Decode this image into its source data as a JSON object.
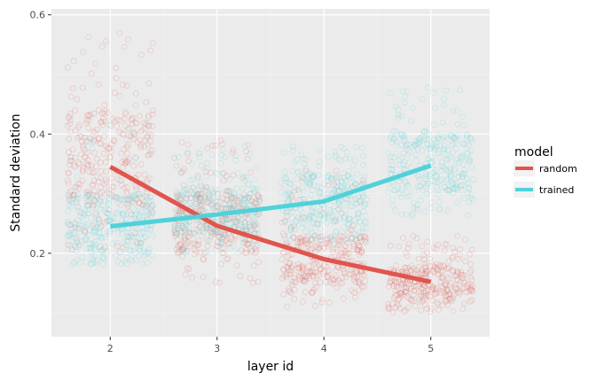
{
  "chart_data": {
    "type": "scatter",
    "title": "",
    "xlabel": "layer id",
    "ylabel": "Standard deviation",
    "x_ticks": [
      "2",
      "3",
      "4",
      "5"
    ],
    "y_ticks": [
      "0.2",
      "0.4",
      "0.6"
    ],
    "xlim": [
      1.45,
      5.55
    ],
    "ylim": [
      0.06,
      0.61
    ],
    "grid": true,
    "legend": {
      "title": "model",
      "position": "right",
      "entries": [
        "random",
        "trained"
      ]
    },
    "colors": {
      "random": "#E0554E",
      "trained": "#4FD2D8"
    },
    "series": [
      {
        "name": "random",
        "color": "#E0554E",
        "line_x": [
          2,
          3,
          4,
          5
        ],
        "line_y": [
          0.345,
          0.246,
          0.19,
          0.152
        ],
        "points": [
          {
            "x": 2,
            "low": 0.2,
            "q1": 0.28,
            "q3": 0.44,
            "high": 0.58
          },
          {
            "x": 3,
            "low": 0.15,
            "q1": 0.2,
            "q3": 0.3,
            "high": 0.39
          },
          {
            "x": 4,
            "low": 0.11,
            "q1": 0.15,
            "q3": 0.23,
            "high": 0.34
          },
          {
            "x": 5,
            "low": 0.1,
            "q1": 0.12,
            "q3": 0.18,
            "high": 0.23
          }
        ]
      },
      {
        "name": "trained",
        "color": "#4FD2D8",
        "line_x": [
          2,
          3,
          4,
          5
        ],
        "line_y": [
          0.245,
          0.265,
          0.287,
          0.347
        ],
        "points": [
          {
            "x": 2,
            "low": 0.18,
            "q1": 0.2,
            "q3": 0.3,
            "high": 0.42
          },
          {
            "x": 3,
            "low": 0.2,
            "q1": 0.23,
            "q3": 0.31,
            "high": 0.38
          },
          {
            "x": 4,
            "low": 0.22,
            "q1": 0.25,
            "q3": 0.33,
            "high": 0.38
          },
          {
            "x": 5,
            "low": 0.26,
            "q1": 0.3,
            "q3": 0.4,
            "high": 0.48
          }
        ]
      }
    ]
  }
}
